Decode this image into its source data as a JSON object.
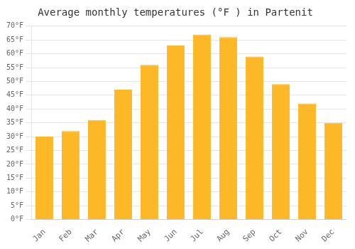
{
  "chart_data": {
    "type": "bar",
    "title": "Average monthly temperatures (°F ) in Partenit",
    "categories": [
      "Jan",
      "Feb",
      "Mar",
      "Apr",
      "May",
      "Jun",
      "Jul",
      "Aug",
      "Sep",
      "Oct",
      "Nov",
      "Dec"
    ],
    "values": [
      30,
      32,
      36,
      47,
      56,
      63,
      67,
      66,
      59,
      49,
      42,
      35
    ],
    "color": "#FDB827",
    "ylim": [
      0,
      70
    ],
    "yticks": [
      {
        "value": 0,
        "label": "0°F"
      },
      {
        "value": 5,
        "label": "5°F"
      },
      {
        "value": 10,
        "label": "10°F"
      },
      {
        "value": 15,
        "label": "15°F"
      },
      {
        "value": 20,
        "label": "20°F"
      },
      {
        "value": 25,
        "label": "25°F"
      },
      {
        "value": 30,
        "label": "30°F"
      },
      {
        "value": 35,
        "label": "35°F"
      },
      {
        "value": 40,
        "label": "40°F"
      },
      {
        "value": 45,
        "label": "45°F"
      },
      {
        "value": 50,
        "label": "50°F"
      },
      {
        "value": 55,
        "label": "55°F"
      },
      {
        "value": 60,
        "label": "60°F"
      },
      {
        "value": 65,
        "label": "65°F"
      },
      {
        "value": 70,
        "label": "70°F"
      }
    ],
    "grid": "y"
  }
}
